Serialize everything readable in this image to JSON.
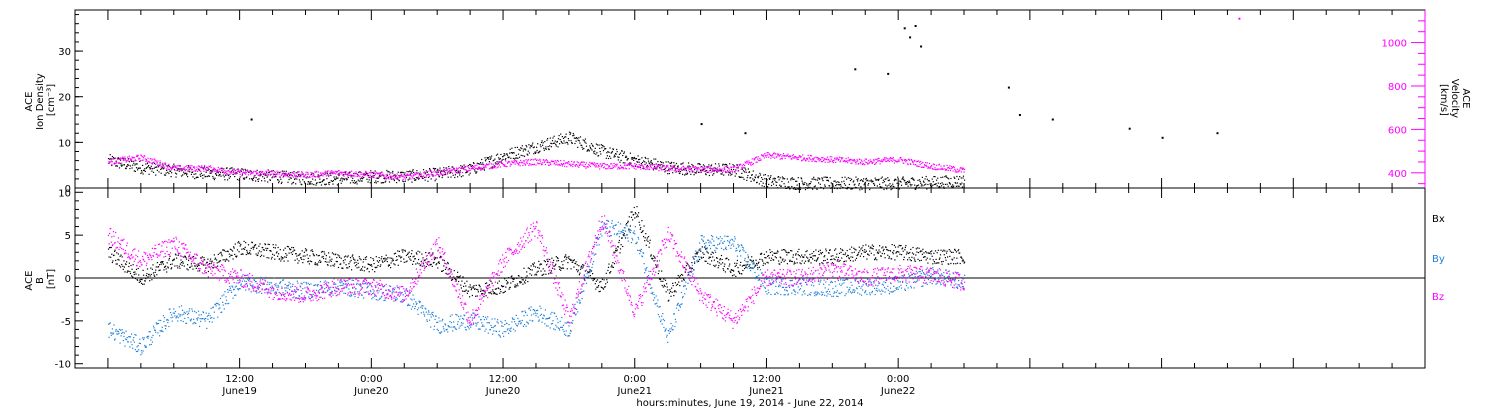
{
  "chart_data": [
    {
      "type": "scatter",
      "panel": "top",
      "ylabel_left_lines": [
        "ACE",
        "Ion Density",
        "[cm⁻³]"
      ],
      "ylabel_right_lines": [
        "ACE",
        "Velocity",
        "[km/s]"
      ],
      "ylim_left": [
        0,
        39
      ],
      "ylim_right": [
        330,
        1150
      ],
      "yticks_left": [
        "0",
        "10",
        "20",
        "30"
      ],
      "yticks_right": [
        "400",
        "600",
        "800",
        "1000"
      ],
      "series": [
        {
          "color": "#000000",
          "axis": "left",
          "x_hours": [
            0,
            3,
            6,
            9,
            12,
            15,
            18,
            21,
            24,
            27,
            30,
            33,
            36,
            39,
            42,
            45,
            48,
            51,
            54,
            57,
            60,
            63,
            66,
            69,
            72,
            75,
            78
          ],
          "values": [
            6,
            4.5,
            3.8,
            3.2,
            3,
            2.5,
            2,
            2,
            2.5,
            2.5,
            3,
            4,
            7,
            9,
            11,
            8,
            6,
            4.5,
            4,
            4,
            1.5,
            1,
            1,
            1,
            1,
            1.2,
            1.5
          ],
          "outliers": [
            [
              13,
              15
            ],
            [
              54,
              14
            ],
            [
              58,
              12
            ],
            [
              68,
              26
            ],
            [
              71,
              25
            ],
            [
              72.5,
              35
            ],
            [
              73,
              33
            ],
            [
              74,
              31
            ],
            [
              73.5,
              35.5
            ],
            [
              82,
              22
            ],
            [
              83,
              16
            ],
            [
              86,
              15
            ],
            [
              93,
              13
            ],
            [
              96,
              11
            ],
            [
              101,
              12
            ]
          ]
        },
        {
          "color": "#ff00ff",
          "axis": "right",
          "x_hours": [
            0,
            3,
            6,
            9,
            12,
            15,
            18,
            21,
            24,
            27,
            30,
            33,
            36,
            39,
            42,
            45,
            48,
            51,
            54,
            57,
            60,
            63,
            66,
            69,
            72,
            75,
            78
          ],
          "values": [
            450,
            470,
            420,
            420,
            400,
            395,
            390,
            400,
            390,
            380,
            400,
            420,
            440,
            450,
            440,
            430,
            430,
            420,
            415,
            415,
            480,
            470,
            460,
            450,
            460,
            430,
            410
          ],
          "outliers": [
            [
              103,
              1110
            ]
          ]
        }
      ]
    },
    {
      "type": "scatter",
      "panel": "bottom",
      "ylabel_lines": [
        "ACE",
        "B",
        "[nT]"
      ],
      "ylim": [
        -10.5,
        10.5
      ],
      "yticks": [
        "-10",
        "-5",
        "0",
        "5",
        "10"
      ],
      "legend": [
        "Bx",
        "By",
        "Bz"
      ],
      "legend_placement": "right",
      "series": [
        {
          "name": "Bx",
          "color": "#000000",
          "x_hours": [
            0,
            3,
            6,
            9,
            12,
            15,
            18,
            21,
            24,
            27,
            30,
            33,
            36,
            39,
            42,
            45,
            48,
            51,
            54,
            57,
            60,
            63,
            66,
            69,
            72,
            75,
            78
          ],
          "values": [
            3,
            0,
            2,
            1.5,
            3.5,
            3,
            2.5,
            2,
            1.5,
            2.5,
            2,
            -1.5,
            -1,
            1,
            2,
            -1,
            8,
            -2,
            3,
            1,
            2.5,
            2.5,
            2.5,
            3,
            3,
            2.5,
            2.5
          ]
        },
        {
          "name": "By",
          "color": "#1e7fd8",
          "x_hours": [
            0,
            3,
            6,
            9,
            12,
            15,
            18,
            21,
            24,
            27,
            30,
            33,
            36,
            39,
            42,
            45,
            48,
            51,
            54,
            57,
            60,
            63,
            66,
            69,
            72,
            75,
            78
          ],
          "values": [
            -6,
            -8,
            -4,
            -5,
            -0.5,
            -1,
            -1.5,
            -1,
            -1.5,
            -2,
            -5.5,
            -5,
            -6,
            -4,
            -6,
            6,
            5,
            -7,
            4,
            4,
            -1,
            -1,
            -1.2,
            -1,
            -0.8,
            0.3,
            -0.5
          ]
        },
        {
          "name": "Bz",
          "color": "#ff00ff",
          "x_hours": [
            0,
            3,
            6,
            9,
            12,
            15,
            18,
            21,
            24,
            27,
            30,
            33,
            36,
            39,
            42,
            45,
            48,
            51,
            54,
            57,
            60,
            63,
            66,
            69,
            72,
            75,
            78
          ],
          "values": [
            5,
            2,
            4,
            1,
            0,
            -1.5,
            -2,
            -1,
            -1,
            -2,
            4,
            -5,
            2,
            6,
            -5,
            7,
            -4,
            5,
            -2,
            -5,
            0,
            0,
            1,
            0,
            0.5,
            0.3,
            -0.5
          ]
        }
      ]
    }
  ],
  "x_axis": {
    "x_hours_range": [
      -3,
      120
    ],
    "major_ticks": [
      {
        "x_hours": 12,
        "time": "12:00",
        "date": "June19"
      },
      {
        "x_hours": 24,
        "time": "0:00",
        "date": "June20"
      },
      {
        "x_hours": 36,
        "time": "12:00",
        "date": "June20"
      },
      {
        "x_hours": 48,
        "time": "0:00",
        "date": "June21"
      },
      {
        "x_hours": 60,
        "time": "12:00",
        "date": "June21"
      },
      {
        "x_hours": 72,
        "time": "0:00",
        "date": "June22"
      }
    ],
    "xlabel": "hours:minutes, June 19, 2014 - June 22, 2014"
  }
}
